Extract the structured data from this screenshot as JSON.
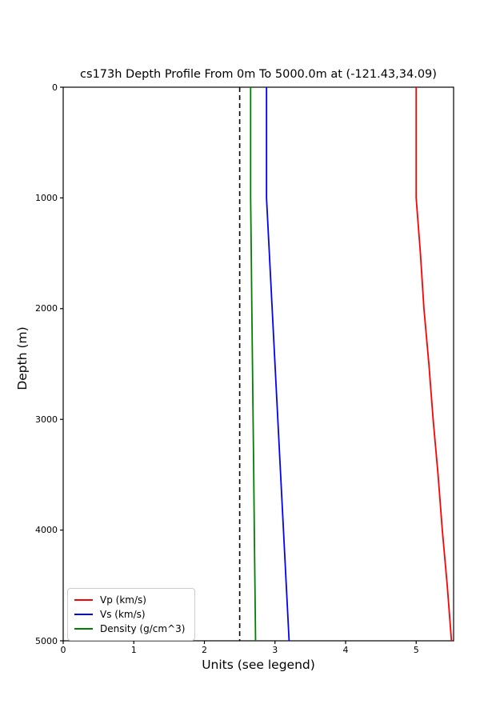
{
  "chart_data": {
    "type": "line",
    "title": "cs173h Depth Profile From 0m To 5000.0m at (-121.43,34.09)",
    "xlabel": "Units (see legend)",
    "ylabel": "Depth (m)",
    "xlim": [
      0,
      5.53
    ],
    "ylim": [
      5000,
      0
    ],
    "y_inverted": true,
    "grid": false,
    "legend_position": "lower left",
    "x_ticks": [
      0,
      1,
      2,
      3,
      4,
      5
    ],
    "y_ticks": [
      0,
      1000,
      2000,
      3000,
      4000,
      5000
    ],
    "depths": [
      0,
      500,
      1000,
      1500,
      2000,
      2500,
      3000,
      3500,
      4000,
      4500,
      5000
    ],
    "series": [
      {
        "name": "Vp (km/s)",
        "color": "#ff0000",
        "values": [
          5.0,
          5.0,
          5.0,
          5.06,
          5.11,
          5.18,
          5.24,
          5.31,
          5.37,
          5.44,
          5.5
        ]
      },
      {
        "name": "Vs (km/s)",
        "color": "#0000ff",
        "values": [
          2.88,
          2.88,
          2.88,
          2.92,
          2.96,
          3.0,
          3.04,
          3.08,
          3.12,
          3.16,
          3.2
        ]
      },
      {
        "name": "Density (g/cm^3)",
        "color": "#008000",
        "values": [
          2.655,
          2.655,
          2.655,
          2.664,
          2.672,
          2.681,
          2.69,
          2.699,
          2.707,
          2.716,
          2.725
        ]
      }
    ],
    "reference_line": {
      "value": 2.5,
      "color": "#000000",
      "style": "dashed"
    }
  }
}
